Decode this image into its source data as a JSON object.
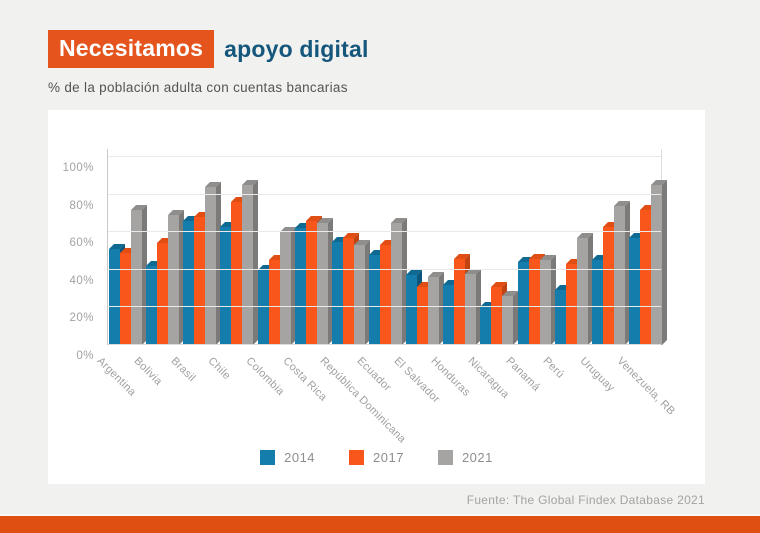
{
  "header": {
    "badge": "Necesitamos",
    "rest": "apoyo digital"
  },
  "subtitle": "% de la población adulta con cuentas bancarias",
  "colors": {
    "background": "#f1f1ef",
    "card": "#ffffff",
    "accent_orange": "#e4541c",
    "title_blue": "#14567c",
    "bar_blue": "#147dac",
    "bar_orange": "#f9561b",
    "bar_gray": "#a5a4a3"
  },
  "chart_data": {
    "type": "bar",
    "title": "Necesitamos apoyo digital",
    "subtitle": "% de la población adulta con cuentas bancarias",
    "categories": [
      "Argentina",
      "Bolivia",
      "Brasil",
      "Chile",
      "Colombia",
      "Costa Rica",
      "República Dominicana",
      "Ecuador",
      "El Salvador",
      "Honduras",
      "Nicaragua",
      "Panamá",
      "Perú",
      "Uruguay",
      "Venezuela, RB"
    ],
    "series": [
      {
        "name": "2014",
        "color": "#147dac",
        "color_dark_side": "#0b567a",
        "color_dark_top": "#0e6a93",
        "values": [
          51,
          42,
          66,
          63,
          40,
          62,
          55,
          48,
          37,
          32,
          20,
          44,
          29,
          45,
          57
        ]
      },
      {
        "name": "2017",
        "color": "#f9561b",
        "color_dark_side": "#c04310",
        "color_dark_top": "#e14e13",
        "values": [
          49,
          54,
          68,
          76,
          45,
          66,
          57,
          53,
          31,
          46,
          31,
          46,
          43,
          63,
          72
        ]
      },
      {
        "name": "2021",
        "color": "#a5a4a3",
        "color_dark_side": "#7b7a79",
        "color_dark_top": "#8f8e8d",
        "values": [
          72,
          69,
          84,
          85,
          60,
          65,
          53,
          65,
          36,
          38,
          26,
          45,
          57,
          74,
          85
        ]
      }
    ],
    "xlabel": "",
    "ylabel": "",
    "ylim": [
      0,
      100
    ],
    "yticks": [
      "0%",
      "20%",
      "40%",
      "60%",
      "80%",
      "100%"
    ],
    "grid": "horizontal",
    "legend_position": "bottom"
  },
  "footer": {
    "source": "Fuente: The Global Findex Database 2021"
  }
}
